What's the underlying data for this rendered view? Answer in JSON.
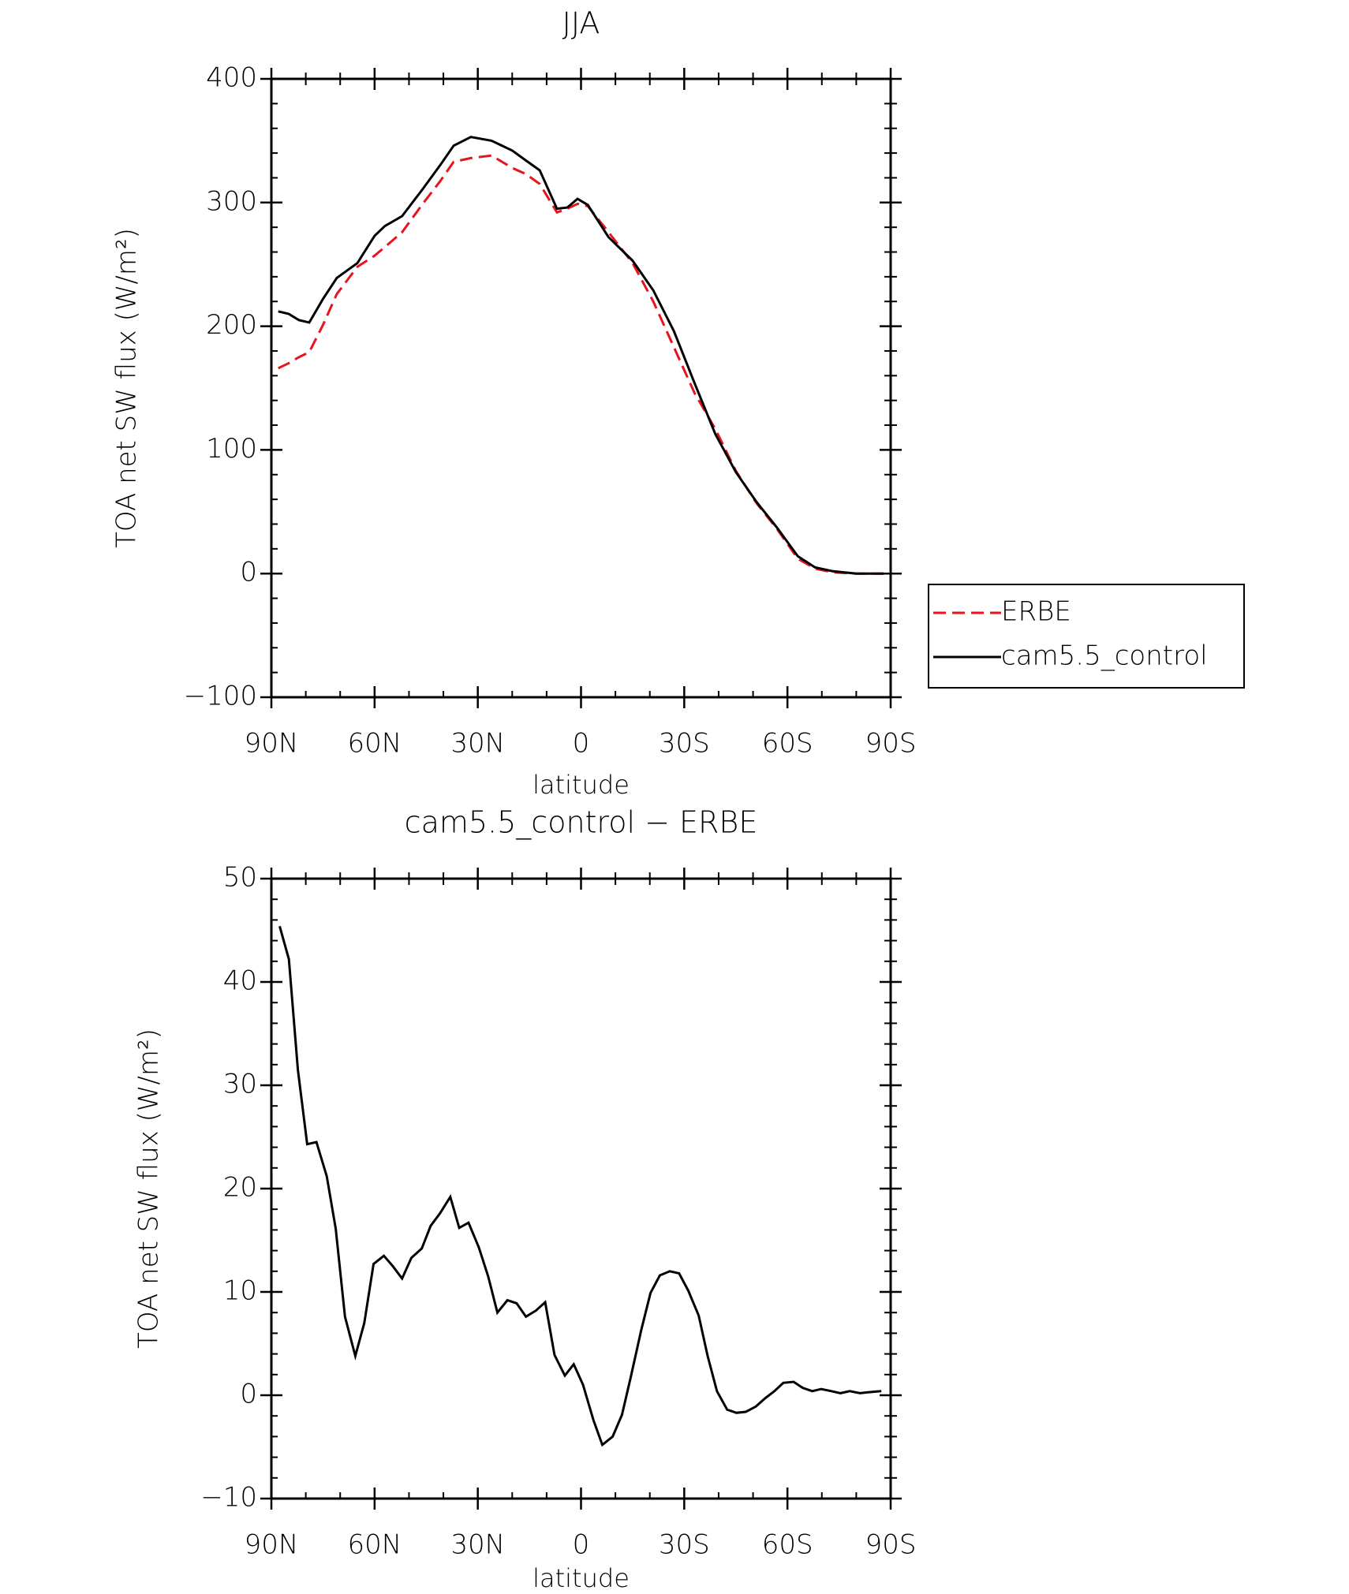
{
  "chart_data": [
    {
      "type": "line",
      "title": "JJA",
      "xlabel": "latitude",
      "ylabel": "TOA net SW flux (W/m²)",
      "x": [
        88,
        85,
        82,
        79,
        75,
        71,
        65,
        60,
        57,
        52,
        46,
        41,
        37,
        32,
        26,
        20,
        16,
        12,
        7,
        4,
        1,
        -2,
        -8,
        -15,
        -21,
        -27,
        -33,
        -39,
        -45,
        -51,
        -57,
        -63,
        -68,
        -73,
        -80,
        -88
      ],
      "series": [
        {
          "name": "ERBE",
          "color": "#e8141c",
          "dash": true,
          "values": [
            166,
            170,
            175,
            179,
            201,
            226,
            248,
            257,
            264,
            276,
            299,
            317,
            333,
            336,
            338,
            328,
            323,
            315,
            292,
            295,
            299,
            297,
            276,
            251,
            220,
            183,
            146,
            117,
            83,
            57,
            36,
            12,
            4,
            1,
            0,
            0
          ]
        },
        {
          "name": "cam5.5_control",
          "color": "#000000",
          "dash": false,
          "values": [
            212,
            210,
            205,
            203,
            222,
            239,
            251,
            273,
            281,
            289,
            311,
            330,
            346,
            353,
            350,
            342,
            334,
            326,
            295,
            296,
            303,
            298,
            272,
            253,
            229,
            196,
            154,
            113,
            82,
            58,
            37,
            14,
            5,
            2,
            0,
            0
          ]
        }
      ],
      "xlim": [
        90,
        -90
      ],
      "xticks": [
        {
          "value": 90,
          "label": "90N"
        },
        {
          "value": 60,
          "label": "60N"
        },
        {
          "value": 30,
          "label": "30N"
        },
        0,
        {
          "value": -30,
          "label": "30S"
        },
        {
          "value": -60,
          "label": "60S"
        },
        {
          "value": -90,
          "label": "90S"
        }
      ],
      "ylim": [
        -100,
        400
      ],
      "yticks": [
        {
          "value": -100,
          "label": "−100"
        },
        0,
        100,
        200,
        300,
        400
      ],
      "legend": "right"
    },
    {
      "type": "line",
      "title": "cam5.5_control − ERBE",
      "xlabel": "latitude",
      "ylabel": "TOA net SW flux (W/m²)",
      "x": [
        87.6,
        84.9,
        82.3,
        79.6,
        76.9,
        73.9,
        71.3,
        68.6,
        65.6,
        63,
        60.3,
        57.3,
        54.7,
        52,
        49.3,
        46.3,
        43.7,
        41,
        38,
        35.4,
        32.7,
        29.7,
        27,
        24.3,
        21.4,
        18.7,
        16,
        13.1,
        10.4,
        7.7,
        4.7,
        2.1,
        -0.6,
        -3.6,
        -6.2,
        -9.2,
        -11.9,
        -14.5,
        -17.5,
        -20.2,
        -22.9,
        -25.8,
        -28.5,
        -31.2,
        -34.2,
        -36.8,
        -39.5,
        -42.5,
        -45.2,
        -47.9,
        -50.8,
        -53.5,
        -56.2,
        -58.8,
        -61.8,
        -64.5,
        -67.2,
        -69.8,
        -72.8,
        -75.4,
        -78.1,
        -81.1,
        -83.7,
        -87.3
      ],
      "values": [
        45.4,
        42.2,
        31.5,
        24.3,
        24.5,
        21.2,
        16.1,
        7.6,
        3.8,
        7,
        12.7,
        13.5,
        12.5,
        11.3,
        13.3,
        14.2,
        16.4,
        17.6,
        19.2,
        16.2,
        16.7,
        14.3,
        11.5,
        8,
        9.2,
        8.9,
        7.6,
        8.2,
        9,
        3.9,
        1.9,
        3,
        1,
        -2.4,
        -4.8,
        -4,
        -1.9,
        1.8,
        6.3,
        9.9,
        11.6,
        12,
        11.8,
        10.1,
        7.7,
        3.8,
        0.4,
        -1.4,
        -1.7,
        -1.6,
        -1.1,
        -0.3,
        0.4,
        1.2,
        1.3,
        0.7,
        0.4,
        0.6,
        0.4,
        0.2,
        0.4,
        0.2,
        0.3,
        0.4
      ],
      "color": "#000000",
      "xlim": [
        90,
        -90
      ],
      "xticks": [
        {
          "value": 90,
          "label": "90N"
        },
        {
          "value": 60,
          "label": "60N"
        },
        {
          "value": 30,
          "label": "30N"
        },
        0,
        {
          "value": -30,
          "label": "30S"
        },
        {
          "value": -60,
          "label": "60S"
        },
        {
          "value": -90,
          "label": "90S"
        }
      ],
      "ylim": [
        -10,
        50
      ],
      "yticks": [
        {
          "value": -10,
          "label": "−10"
        },
        0,
        10,
        20,
        30,
        40,
        50
      ]
    }
  ]
}
